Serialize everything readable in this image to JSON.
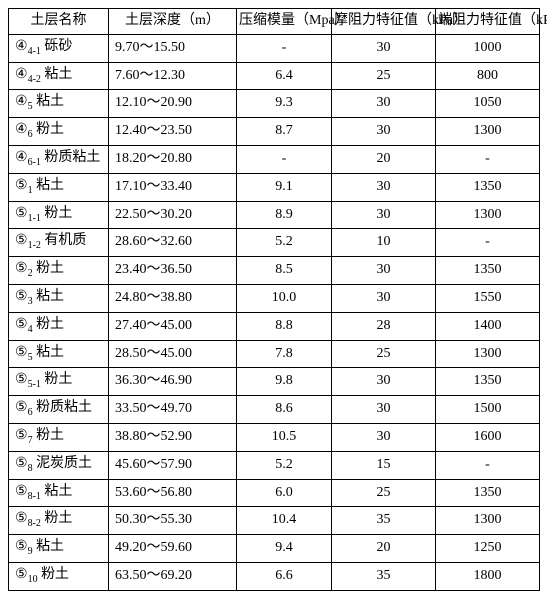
{
  "table": {
    "headers": [
      "土层名称",
      "土层深度（m）",
      "压缩模量（Mpa）",
      "摩阻力特征值（kPa）",
      "端阻力特征值（kPa）"
    ],
    "rows": [
      {
        "name": "④<sub>4-1</sub> 砾砂",
        "depth": "9.70～15.50",
        "comp": "-",
        "fric": "30",
        "tip": "1000"
      },
      {
        "name": "④<sub>4-2</sub> 粘土",
        "depth": "7.60～12.30",
        "comp": "6.4",
        "fric": "25",
        "tip": "800"
      },
      {
        "name": "④<sub>5</sub> 粘土",
        "depth": "12.10～20.90",
        "comp": "9.3",
        "fric": "30",
        "tip": "1050"
      },
      {
        "name": "④<sub>6</sub> 粉土",
        "depth": "12.40～23.50",
        "comp": "8.7",
        "fric": "30",
        "tip": "1300"
      },
      {
        "name": "④<sub>6-1</sub> 粉质粘土",
        "depth": "18.20～20.80",
        "comp": "-",
        "fric": "20",
        "tip": "-"
      },
      {
        "name": "⑤<sub>1</sub> 粘土",
        "depth": "17.10～33.40",
        "comp": "9.1",
        "fric": "30",
        "tip": "1350"
      },
      {
        "name": "⑤<sub>1-1</sub> 粉土",
        "depth": "22.50～30.20",
        "comp": "8.9",
        "fric": "30",
        "tip": "1300"
      },
      {
        "name": "⑤<sub>1-2</sub> 有机质",
        "depth": "28.60～32.60",
        "comp": "5.2",
        "fric": "10",
        "tip": "-"
      },
      {
        "name": "⑤<sub>2</sub> 粉土",
        "depth": "23.40～36.50",
        "comp": "8.5",
        "fric": "30",
        "tip": "1350"
      },
      {
        "name": "⑤<sub>3</sub> 粘土",
        "depth": "24.80～38.80",
        "comp": "10.0",
        "fric": "30",
        "tip": "1550"
      },
      {
        "name": "⑤<sub>4</sub> 粉土",
        "depth": "27.40～45.00",
        "comp": "8.8",
        "fric": "28",
        "tip": "1400"
      },
      {
        "name": "⑤<sub>5</sub> 粘土",
        "depth": "28.50～45.00",
        "comp": "7.8",
        "fric": "25",
        "tip": "1300"
      },
      {
        "name": "⑤<sub>5-1</sub> 粉土",
        "depth": "36.30～46.90",
        "comp": "9.8",
        "fric": "30",
        "tip": "1350"
      },
      {
        "name": "⑤<sub>6</sub> 粉质粘土",
        "depth": "33.50～49.70",
        "comp": "8.6",
        "fric": "30",
        "tip": "1500"
      },
      {
        "name": "⑤<sub>7</sub> 粉土",
        "depth": "38.80～52.90",
        "comp": "10.5",
        "fric": "30",
        "tip": "1600"
      },
      {
        "name": "⑤<sub>8</sub> 泥炭质土",
        "depth": "45.60～57.90",
        "comp": "5.2",
        "fric": "15",
        "tip": "-"
      },
      {
        "name": "⑤<sub>8-1</sub> 粘土",
        "depth": "53.60～56.80",
        "comp": "6.0",
        "fric": "25",
        "tip": "1350"
      },
      {
        "name": "⑤<sub>8-2</sub> 粉土",
        "depth": "50.30～55.30",
        "comp": "10.4",
        "fric": "35",
        "tip": "1300"
      },
      {
        "name": "⑤<sub>9</sub> 粘土",
        "depth": "49.20～59.60",
        "comp": "9.4",
        "fric": "20",
        "tip": "1250"
      },
      {
        "name": "⑤<sub>10</sub> 粉土",
        "depth": "63.50～69.20",
        "comp": "6.6",
        "fric": "35",
        "tip": "1800"
      }
    ]
  }
}
